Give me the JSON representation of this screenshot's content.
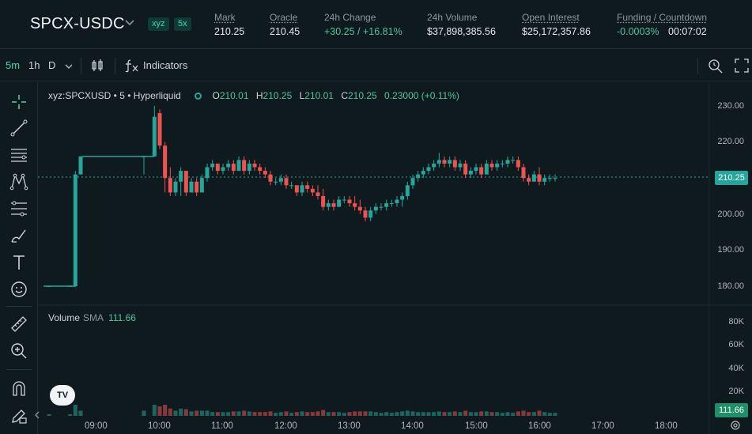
{
  "market": {
    "pair": "SPCX-USDC",
    "badges": [
      "xyz",
      "5x"
    ],
    "stats": [
      {
        "label": "Mark",
        "value": "210.25",
        "underline": true
      },
      {
        "label": "Oracle",
        "value": "210.45",
        "underline": true
      },
      {
        "label": "24h Change",
        "value": "+30.25 / +16.81%",
        "underline": false,
        "positive": true
      },
      {
        "label": "24h Volume",
        "value": "$37,898,385.56",
        "underline": false
      },
      {
        "label": "Open Interest",
        "value": "$25,172,357.86",
        "underline": true
      },
      {
        "label": "Funding / Countdown",
        "value": "-0.0003%",
        "value2": "00:07:02",
        "underline": true
      }
    ]
  },
  "toolbar": {
    "intervals": [
      "5m",
      "1h",
      "D"
    ],
    "active_interval": "5m",
    "indicators_label": "Indicators",
    "icons": [
      "chevron-down-icon",
      "candles-icon",
      "fx-icon",
      "zoom-icon",
      "fullscreen-icon"
    ]
  },
  "left_tools": [
    "crosshair-icon",
    "trend-line-icon",
    "horizontal-lines-icon",
    "pattern-icon",
    "fib-icon",
    "brush-icon",
    "text-icon",
    "emoji-icon",
    "ruler-icon",
    "zoom-in-icon",
    "magnet-icon",
    "lock-pencil-icon"
  ],
  "legend": {
    "symbol": "xyz:SPCXUSD • 5 • Hyperliquid",
    "o_label": "O",
    "o": "210.01",
    "h_label": "H",
    "h": "210.25",
    "l_label": "L",
    "l": "210.01",
    "c_label": "C",
    "c": "210.25",
    "change": "0.23000 (+0.11%)"
  },
  "volume_legend": {
    "label": "Volume",
    "sma": "SMA",
    "value": "111.66"
  },
  "price_axis": [
    "230.00",
    "220.00",
    "210.00",
    "200.00",
    "190.00",
    "180.00"
  ],
  "current_price_tag": "210.25",
  "volume_axis": [
    "80K",
    "60K",
    "40K",
    "20K"
  ],
  "volume_tag": "111.66",
  "time_axis": [
    "09:00",
    "10:00",
    "11:00",
    "12:00",
    "13:00",
    "14:00",
    "15:00",
    "16:00",
    "17:00",
    "18:00"
  ],
  "colors": {
    "up": "#26a69a",
    "down": "#ef5350",
    "bg": "#0f1a1f",
    "accent": "#4fd1b4"
  },
  "chart_data": {
    "type": "candlestick",
    "y_range": [
      175,
      233
    ],
    "volume_range": [
      0,
      90000
    ],
    "candles_description_source": "approximate visual read",
    "series": [
      {
        "t": "08:15",
        "o": 180,
        "h": 180,
        "l": 180,
        "c": 180
      },
      {
        "t": "08:35",
        "o": 180,
        "h": 180,
        "l": 180,
        "c": 180
      },
      {
        "t": "08:40",
        "o": 180,
        "h": 212,
        "l": 180,
        "c": 211
      },
      {
        "t": "08:45",
        "o": 211,
        "h": 216,
        "l": 211,
        "c": 216
      },
      {
        "t": "09:45",
        "o": 216,
        "h": 216,
        "l": 211,
        "c": 216
      },
      {
        "t": "09:55",
        "o": 216,
        "h": 230,
        "l": 216,
        "c": 227
      },
      {
        "t": "10:00",
        "o": 228,
        "h": 229,
        "l": 218,
        "c": 219
      },
      {
        "t": "10:05",
        "o": 219,
        "h": 220,
        "l": 206,
        "c": 210
      },
      {
        "t": "10:10",
        "o": 210,
        "h": 213,
        "l": 205,
        "c": 206
      },
      {
        "t": "10:15",
        "o": 206,
        "h": 210,
        "l": 205,
        "c": 209
      },
      {
        "t": "10:20",
        "o": 209,
        "h": 213,
        "l": 205,
        "c": 212
      },
      {
        "t": "10:25",
        "o": 212,
        "h": 212,
        "l": 205,
        "c": 206
      },
      {
        "t": "10:30",
        "o": 206,
        "h": 210,
        "l": 206,
        "c": 209
      },
      {
        "t": "10:35",
        "o": 209,
        "h": 210,
        "l": 205,
        "c": 206
      },
      {
        "t": "10:40",
        "o": 206,
        "h": 211,
        "l": 206,
        "c": 210
      },
      {
        "t": "10:45",
        "o": 210,
        "h": 214,
        "l": 209,
        "c": 213
      },
      {
        "t": "10:50",
        "o": 213,
        "h": 215,
        "l": 212,
        "c": 214
      },
      {
        "t": "10:55",
        "o": 214,
        "h": 214,
        "l": 211,
        "c": 212
      },
      {
        "t": "11:00",
        "o": 212,
        "h": 214,
        "l": 211,
        "c": 213
      },
      {
        "t": "11:05",
        "o": 213,
        "h": 215,
        "l": 212,
        "c": 214
      },
      {
        "t": "11:10",
        "o": 214,
        "h": 215,
        "l": 211,
        "c": 212
      },
      {
        "t": "11:15",
        "o": 212,
        "h": 216,
        "l": 212,
        "c": 215
      },
      {
        "t": "11:20",
        "o": 215,
        "h": 216,
        "l": 211,
        "c": 212
      },
      {
        "t": "11:25",
        "o": 212,
        "h": 215,
        "l": 211,
        "c": 214
      },
      {
        "t": "11:30",
        "o": 214,
        "h": 215,
        "l": 212,
        "c": 213
      },
      {
        "t": "11:35",
        "o": 213,
        "h": 214,
        "l": 211,
        "c": 212
      },
      {
        "t": "11:40",
        "o": 212,
        "h": 213,
        "l": 210,
        "c": 211
      },
      {
        "t": "11:45",
        "o": 211,
        "h": 212,
        "l": 208,
        "c": 209
      },
      {
        "t": "11:50",
        "o": 209,
        "h": 210,
        "l": 208,
        "c": 209
      },
      {
        "t": "11:55",
        "o": 209,
        "h": 211,
        "l": 208,
        "c": 210
      },
      {
        "t": "12:00",
        "o": 210,
        "h": 211,
        "l": 207,
        "c": 208
      },
      {
        "t": "12:05",
        "o": 208,
        "h": 209,
        "l": 207,
        "c": 208
      },
      {
        "t": "12:10",
        "o": 208,
        "h": 208,
        "l": 205,
        "c": 206
      },
      {
        "t": "12:15",
        "o": 206,
        "h": 209,
        "l": 205,
        "c": 208
      },
      {
        "t": "12:20",
        "o": 208,
        "h": 209,
        "l": 206,
        "c": 207
      },
      {
        "t": "12:25",
        "o": 207,
        "h": 208,
        "l": 205,
        "c": 206
      },
      {
        "t": "12:30",
        "o": 206,
        "h": 208,
        "l": 204,
        "c": 205
      },
      {
        "t": "12:35",
        "o": 205,
        "h": 207,
        "l": 201,
        "c": 202
      },
      {
        "t": "12:40",
        "o": 202,
        "h": 204,
        "l": 201,
        "c": 203
      },
      {
        "t": "12:45",
        "o": 203,
        "h": 204,
        "l": 201,
        "c": 202
      },
      {
        "t": "12:50",
        "o": 202,
        "h": 205,
        "l": 202,
        "c": 204
      },
      {
        "t": "12:55",
        "o": 204,
        "h": 205,
        "l": 203,
        "c": 204
      },
      {
        "t": "13:00",
        "o": 204,
        "h": 205,
        "l": 202,
        "c": 203
      },
      {
        "t": "13:05",
        "o": 203,
        "h": 205,
        "l": 201,
        "c": 202
      },
      {
        "t": "13:10",
        "o": 202,
        "h": 204,
        "l": 200,
        "c": 201
      },
      {
        "t": "13:15",
        "o": 201,
        "h": 202,
        "l": 198,
        "c": 199
      },
      {
        "t": "13:20",
        "o": 199,
        "h": 202,
        "l": 198,
        "c": 201
      },
      {
        "t": "13:25",
        "o": 201,
        "h": 203,
        "l": 200,
        "c": 202
      },
      {
        "t": "13:30",
        "o": 202,
        "h": 203,
        "l": 201,
        "c": 202
      },
      {
        "t": "13:35",
        "o": 202,
        "h": 204,
        "l": 201,
        "c": 203
      },
      {
        "t": "13:40",
        "o": 203,
        "h": 204,
        "l": 202,
        "c": 203
      },
      {
        "t": "13:45",
        "o": 203,
        "h": 205,
        "l": 202,
        "c": 204
      },
      {
        "t": "13:50",
        "o": 204,
        "h": 206,
        "l": 202,
        "c": 205
      },
      {
        "t": "13:55",
        "o": 205,
        "h": 209,
        "l": 204,
        "c": 208
      },
      {
        "t": "14:00",
        "o": 208,
        "h": 211,
        "l": 207,
        "c": 210
      },
      {
        "t": "14:05",
        "o": 210,
        "h": 212,
        "l": 209,
        "c": 211
      },
      {
        "t": "14:10",
        "o": 211,
        "h": 213,
        "l": 210,
        "c": 212
      },
      {
        "t": "14:15",
        "o": 212,
        "h": 214,
        "l": 211,
        "c": 213
      },
      {
        "t": "14:20",
        "o": 213,
        "h": 215,
        "l": 212,
        "c": 214
      },
      {
        "t": "14:25",
        "o": 214,
        "h": 217,
        "l": 213,
        "c": 215
      },
      {
        "t": "14:30",
        "o": 215,
        "h": 216,
        "l": 213,
        "c": 214
      },
      {
        "t": "14:35",
        "o": 214,
        "h": 216,
        "l": 213,
        "c": 215
      },
      {
        "t": "14:40",
        "o": 215,
        "h": 216,
        "l": 212,
        "c": 213
      },
      {
        "t": "14:45",
        "o": 213,
        "h": 215,
        "l": 212,
        "c": 214
      },
      {
        "t": "14:50",
        "o": 214,
        "h": 215,
        "l": 210,
        "c": 211
      },
      {
        "t": "14:55",
        "o": 211,
        "h": 213,
        "l": 210,
        "c": 212
      },
      {
        "t": "15:00",
        "o": 212,
        "h": 214,
        "l": 211,
        "c": 213
      },
      {
        "t": "15:05",
        "o": 213,
        "h": 214,
        "l": 210,
        "c": 211
      },
      {
        "t": "15:10",
        "o": 211,
        "h": 215,
        "l": 211,
        "c": 214
      },
      {
        "t": "15:15",
        "o": 214,
        "h": 215,
        "l": 212,
        "c": 213
      },
      {
        "t": "15:20",
        "o": 213,
        "h": 215,
        "l": 212,
        "c": 214
      },
      {
        "t": "15:25",
        "o": 214,
        "h": 215,
        "l": 213,
        "c": 214
      },
      {
        "t": "15:30",
        "o": 214,
        "h": 216,
        "l": 213,
        "c": 215
      },
      {
        "t": "15:35",
        "o": 215,
        "h": 216,
        "l": 214,
        "c": 215
      },
      {
        "t": "15:40",
        "o": 215,
        "h": 216,
        "l": 212,
        "c": 213
      },
      {
        "t": "15:45",
        "o": 213,
        "h": 214,
        "l": 209,
        "c": 210
      },
      {
        "t": "15:50",
        "o": 210,
        "h": 211,
        "l": 208,
        "c": 209
      },
      {
        "t": "15:55",
        "o": 209,
        "h": 212,
        "l": 209,
        "c": 211
      },
      {
        "t": "16:00",
        "o": 211,
        "h": 213,
        "l": 208,
        "c": 209
      },
      {
        "t": "16:05",
        "o": 209,
        "h": 211,
        "l": 208,
        "c": 210
      },
      {
        "t": "16:10",
        "o": 210,
        "h": 211,
        "l": 209,
        "c": 210
      },
      {
        "t": "16:15",
        "o": 210,
        "h": 211,
        "l": 209,
        "c": 210
      }
    ]
  }
}
